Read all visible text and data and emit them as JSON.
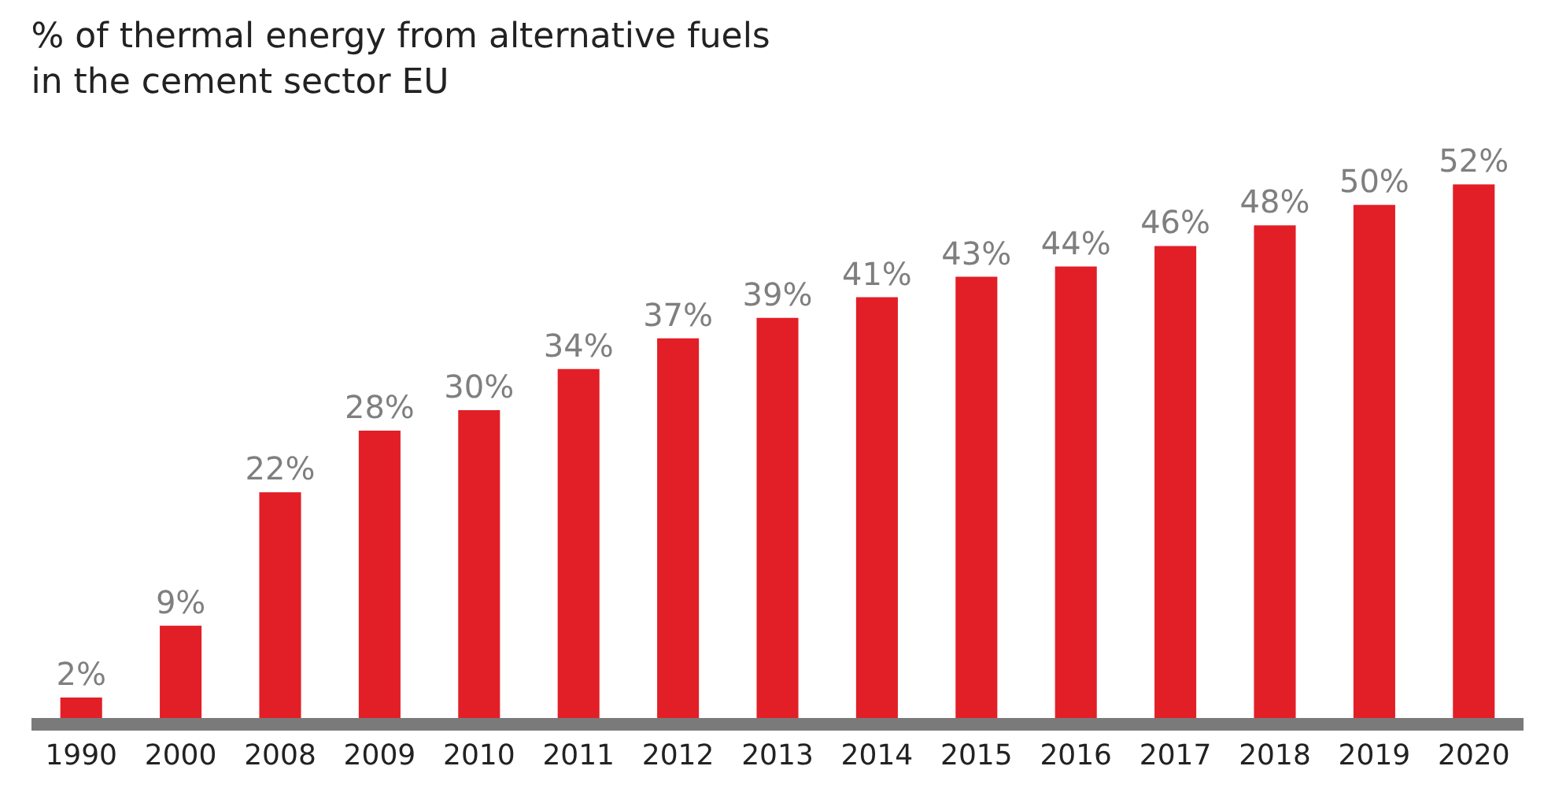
{
  "chart_data": {
    "type": "bar",
    "title": "% of thermal energy from alternative fuels in the cement sector EU",
    "categories": [
      "1990",
      "2000",
      "2008",
      "2009",
      "2010",
      "2011",
      "2012",
      "2013",
      "2014",
      "2015",
      "2016",
      "2017",
      "2018",
      "2019",
      "2020"
    ],
    "values": [
      2,
      9,
      22,
      28,
      30,
      34,
      37,
      39,
      41,
      43,
      44,
      46,
      48,
      50,
      52
    ],
    "value_labels": [
      "2%",
      "9%",
      "22%",
      "28%",
      "30%",
      "34%",
      "37%",
      "39%",
      "41%",
      "43%",
      "44%",
      "46%",
      "48%",
      "50%",
      "52%"
    ],
    "color": "#e21f26",
    "legend": false,
    "tick_labels": "x"
  }
}
